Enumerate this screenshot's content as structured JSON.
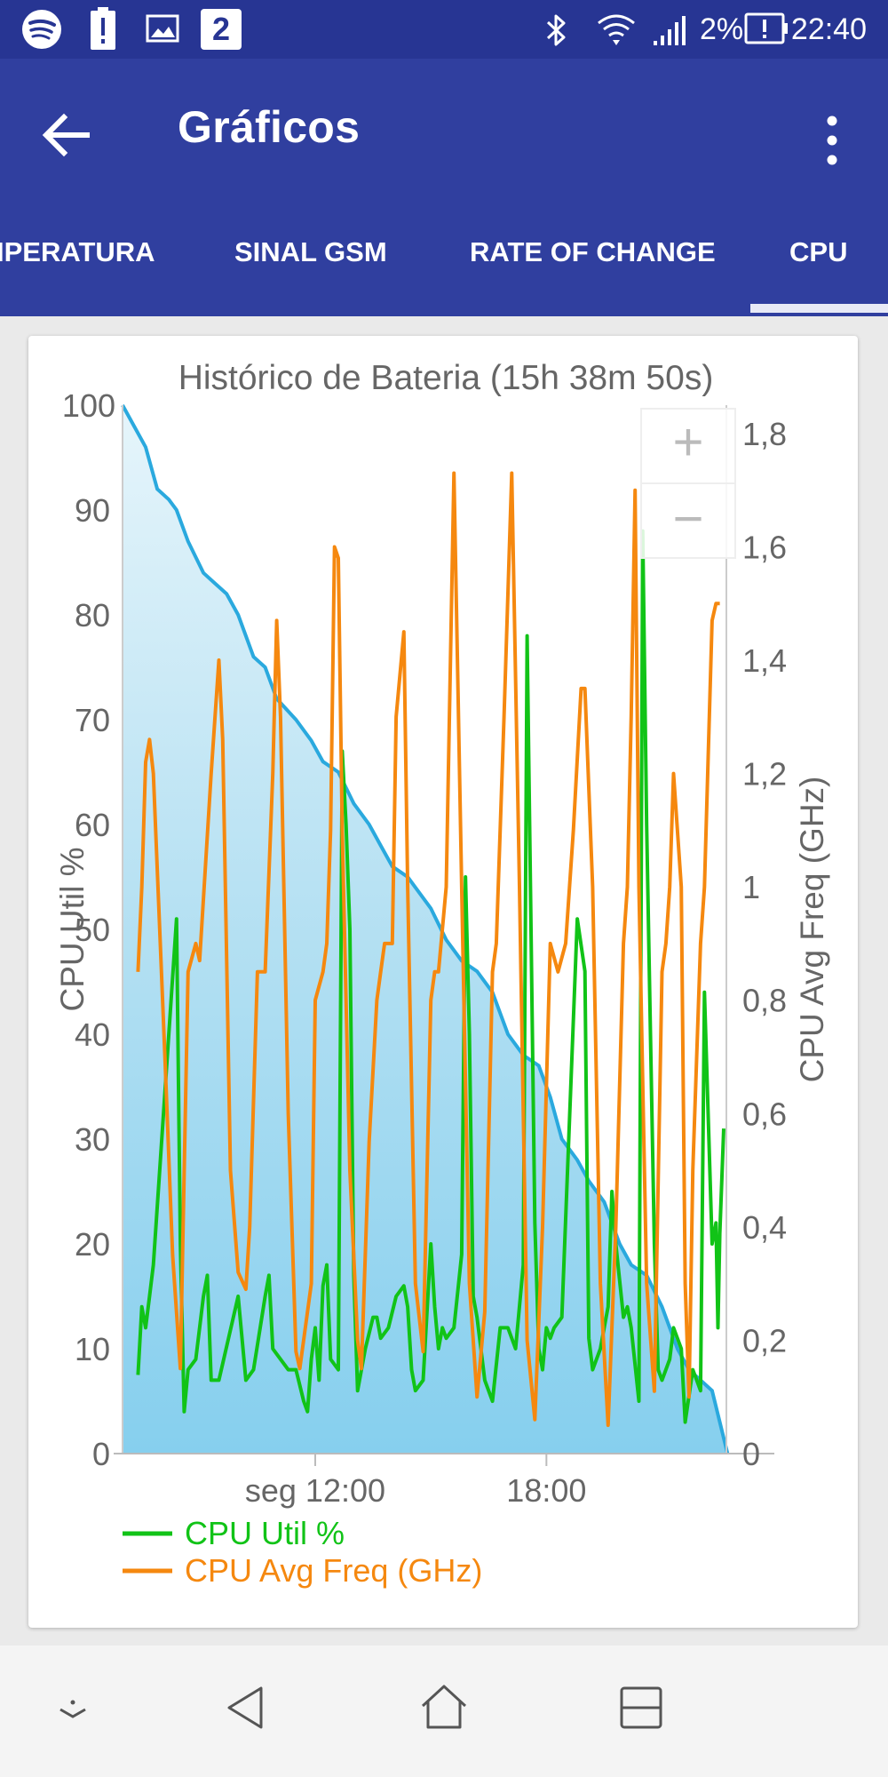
{
  "status_bar": {
    "time": "22:40",
    "battery_pct": "2%",
    "notification_badge": "2",
    "icons": [
      "spotify-icon",
      "battery-alert-icon",
      "image-icon",
      "badge-icon",
      "bluetooth-icon",
      "wifi-icon",
      "signal-icon",
      "battery-icon"
    ]
  },
  "app_bar": {
    "title": "Gráficos",
    "color": "#303f9f",
    "status_color": "#273593",
    "tabs": [
      {
        "label": "IPERATURA"
      },
      {
        "label": "SINAL GSM"
      },
      {
        "label": "RATE OF CHANGE"
      },
      {
        "label": "CPU",
        "selected": true
      }
    ]
  },
  "chart": {
    "zoom_in": "+",
    "zoom_out": "−"
  },
  "chart_data": {
    "type": "line",
    "title": "Histórico de Bateria (15h 38m 50s)",
    "ylabel_left": "CPU Util %",
    "ylabel_right": "CPU Avg Freq (GHz)",
    "left_ticks": [
      "0",
      "10",
      "20",
      "30",
      "40",
      "50",
      "60",
      "70",
      "80",
      "90",
      "100"
    ],
    "right_ticks": [
      "0",
      "0,2",
      "0,4",
      "0,6",
      "0,8",
      "1",
      "1,2",
      "1,4",
      "1,6",
      "1,8"
    ],
    "x_ticks": [
      "seg 12:00",
      "18:00"
    ],
    "ylim_left": [
      0,
      100
    ],
    "ylim_right": [
      0,
      1.85
    ],
    "x_range_hours": [
      7.0,
      22.67
    ],
    "x_tick_hours": [
      12,
      18
    ],
    "colors": {
      "battery": "#2aa9de",
      "cpu_util": "#11c317",
      "cpu_freq": "#f5880f"
    },
    "legend": {
      "position": "bottom-left",
      "entries": [
        "CPU Util %",
        "CPU Avg Freq (GHz)"
      ]
    },
    "series": [
      {
        "name": "CPU Util %",
        "axis": "left",
        "points": [
          [
            7.4,
            7.5
          ],
          [
            7.5,
            14
          ],
          [
            7.6,
            12
          ],
          [
            7.7,
            15
          ],
          [
            7.8,
            18
          ],
          [
            8.4,
            51
          ],
          [
            8.5,
            20
          ],
          [
            8.6,
            4
          ],
          [
            8.7,
            8
          ],
          [
            8.9,
            9
          ],
          [
            9.1,
            15
          ],
          [
            9.2,
            17
          ],
          [
            9.3,
            7
          ],
          [
            9.5,
            7
          ],
          [
            10.0,
            15
          ],
          [
            10.2,
            7
          ],
          [
            10.4,
            8
          ],
          [
            10.7,
            15
          ],
          [
            10.8,
            17
          ],
          [
            10.9,
            10
          ],
          [
            11.3,
            8
          ],
          [
            11.5,
            8
          ],
          [
            11.7,
            5
          ],
          [
            11.8,
            4
          ],
          [
            11.9,
            9
          ],
          [
            12.0,
            12
          ],
          [
            12.1,
            7
          ],
          [
            12.2,
            16
          ],
          [
            12.3,
            18
          ],
          [
            12.4,
            9
          ],
          [
            12.6,
            8
          ],
          [
            12.7,
            67
          ],
          [
            12.8,
            60
          ],
          [
            12.9,
            50
          ],
          [
            13.0,
            17
          ],
          [
            13.1,
            6
          ],
          [
            13.3,
            10
          ],
          [
            13.5,
            13
          ],
          [
            13.6,
            13
          ],
          [
            13.7,
            11
          ],
          [
            13.9,
            12
          ],
          [
            14.1,
            15
          ],
          [
            14.3,
            16
          ],
          [
            14.4,
            14
          ],
          [
            14.5,
            8
          ],
          [
            14.6,
            6
          ],
          [
            14.8,
            7
          ],
          [
            15.0,
            20
          ],
          [
            15.1,
            14
          ],
          [
            15.2,
            10
          ],
          [
            15.3,
            12
          ],
          [
            15.4,
            11
          ],
          [
            15.6,
            12
          ],
          [
            15.8,
            19
          ],
          [
            15.9,
            55
          ],
          [
            16.0,
            40
          ],
          [
            16.1,
            15
          ],
          [
            16.2,
            13
          ],
          [
            16.4,
            7
          ],
          [
            16.6,
            5
          ],
          [
            16.8,
            12
          ],
          [
            17.0,
            12
          ],
          [
            17.2,
            10
          ],
          [
            17.4,
            18
          ],
          [
            17.5,
            78
          ],
          [
            17.6,
            50
          ],
          [
            17.7,
            22
          ],
          [
            17.8,
            10
          ],
          [
            17.9,
            8
          ],
          [
            18.0,
            12
          ],
          [
            18.1,
            11
          ],
          [
            18.2,
            12
          ],
          [
            18.4,
            13
          ],
          [
            18.8,
            51
          ],
          [
            19.0,
            46
          ],
          [
            19.1,
            11
          ],
          [
            19.2,
            8
          ],
          [
            19.4,
            10
          ],
          [
            19.5,
            12
          ],
          [
            19.6,
            14
          ],
          [
            19.7,
            25
          ],
          [
            19.8,
            20
          ],
          [
            20.0,
            13
          ],
          [
            20.1,
            14
          ],
          [
            20.2,
            12
          ],
          [
            20.4,
            5
          ],
          [
            20.5,
            88
          ],
          [
            20.6,
            60
          ],
          [
            20.7,
            40
          ],
          [
            20.8,
            20
          ],
          [
            20.9,
            8
          ],
          [
            21.0,
            7
          ],
          [
            21.2,
            9
          ],
          [
            21.3,
            12
          ],
          [
            21.5,
            10
          ],
          [
            21.6,
            3
          ],
          [
            21.8,
            8
          ],
          [
            21.9,
            7
          ],
          [
            22.0,
            6
          ],
          [
            22.1,
            44
          ],
          [
            22.2,
            32
          ],
          [
            22.3,
            20
          ],
          [
            22.4,
            22
          ],
          [
            22.45,
            12
          ],
          [
            22.5,
            21
          ],
          [
            22.6,
            31
          ]
        ]
      },
      {
        "name": "CPU Avg Freq (GHz)",
        "axis": "right",
        "points": [
          [
            7.4,
            0.85
          ],
          [
            7.5,
            1.0
          ],
          [
            7.6,
            1.22
          ],
          [
            7.7,
            1.26
          ],
          [
            7.8,
            1.2
          ],
          [
            8.1,
            0.7
          ],
          [
            8.3,
            0.35
          ],
          [
            8.5,
            0.15
          ],
          [
            8.7,
            0.85
          ],
          [
            8.9,
            0.9
          ],
          [
            9.0,
            0.87
          ],
          [
            9.3,
            1.2
          ],
          [
            9.5,
            1.4
          ],
          [
            9.6,
            1.26
          ],
          [
            9.8,
            0.5
          ],
          [
            10.0,
            0.32
          ],
          [
            10.2,
            0.29
          ],
          [
            10.3,
            0.4
          ],
          [
            10.5,
            0.85
          ],
          [
            10.7,
            0.85
          ],
          [
            10.9,
            1.2
          ],
          [
            11.0,
            1.47
          ],
          [
            11.1,
            1.3
          ],
          [
            11.3,
            0.6
          ],
          [
            11.5,
            0.18
          ],
          [
            11.6,
            0.15
          ],
          [
            11.9,
            0.3
          ],
          [
            12.0,
            0.8
          ],
          [
            12.2,
            0.85
          ],
          [
            12.3,
            0.9
          ],
          [
            12.4,
            1.1
          ],
          [
            12.5,
            1.6
          ],
          [
            12.6,
            1.58
          ],
          [
            12.7,
            1.1
          ],
          [
            12.9,
            0.5
          ],
          [
            13.1,
            0.2
          ],
          [
            13.2,
            0.15
          ],
          [
            13.4,
            0.55
          ],
          [
            13.6,
            0.8
          ],
          [
            13.7,
            0.85
          ],
          [
            13.8,
            0.9
          ],
          [
            14.0,
            0.9
          ],
          [
            14.1,
            1.3
          ],
          [
            14.3,
            1.45
          ],
          [
            14.4,
            1.0
          ],
          [
            14.6,
            0.3
          ],
          [
            14.8,
            0.18
          ],
          [
            15.0,
            0.8
          ],
          [
            15.1,
            0.85
          ],
          [
            15.2,
            0.85
          ],
          [
            15.4,
            1.0
          ],
          [
            15.6,
            1.73
          ],
          [
            15.8,
            1.0
          ],
          [
            16.0,
            0.3
          ],
          [
            16.2,
            0.1
          ],
          [
            16.4,
            0.25
          ],
          [
            16.6,
            0.85
          ],
          [
            16.7,
            0.9
          ],
          [
            16.9,
            1.3
          ],
          [
            17.1,
            1.73
          ],
          [
            17.3,
            1.0
          ],
          [
            17.5,
            0.2
          ],
          [
            17.7,
            0.06
          ],
          [
            17.9,
            0.4
          ],
          [
            18.1,
            0.9
          ],
          [
            18.3,
            0.85
          ],
          [
            18.5,
            0.9
          ],
          [
            18.7,
            1.1
          ],
          [
            18.9,
            1.35
          ],
          [
            19.0,
            1.35
          ],
          [
            19.2,
            1.0
          ],
          [
            19.4,
            0.3
          ],
          [
            19.6,
            0.05
          ],
          [
            19.8,
            0.4
          ],
          [
            20.0,
            0.9
          ],
          [
            20.1,
            1.0
          ],
          [
            20.2,
            1.3
          ],
          [
            20.3,
            1.7
          ],
          [
            20.4,
            1.0
          ],
          [
            20.6,
            0.3
          ],
          [
            20.8,
            0.11
          ],
          [
            21.0,
            0.85
          ],
          [
            21.1,
            0.9
          ],
          [
            21.2,
            1.0
          ],
          [
            21.3,
            1.2
          ],
          [
            21.5,
            1.0
          ],
          [
            21.6,
            0.3
          ],
          [
            21.7,
            0.1
          ],
          [
            21.8,
            0.5
          ],
          [
            22.0,
            0.9
          ],
          [
            22.1,
            1.0
          ],
          [
            22.3,
            1.47
          ],
          [
            22.4,
            1.5
          ],
          [
            22.5,
            1.5
          ]
        ]
      },
      {
        "name": "battery",
        "axis": "left",
        "points": [
          [
            7.0,
            100
          ],
          [
            7.3,
            98
          ],
          [
            7.6,
            96
          ],
          [
            7.9,
            92
          ],
          [
            8.2,
            91
          ],
          [
            8.4,
            90
          ],
          [
            8.7,
            87
          ],
          [
            9.1,
            84
          ],
          [
            9.4,
            83
          ],
          [
            9.7,
            82
          ],
          [
            10.0,
            80
          ],
          [
            10.4,
            76
          ],
          [
            10.7,
            75
          ],
          [
            11.0,
            72
          ],
          [
            11.5,
            70
          ],
          [
            11.9,
            68
          ],
          [
            12.2,
            66
          ],
          [
            12.6,
            65
          ],
          [
            13.0,
            62
          ],
          [
            13.4,
            60
          ],
          [
            13.7,
            58
          ],
          [
            14.0,
            56
          ],
          [
            14.4,
            55
          ],
          [
            14.6,
            54
          ],
          [
            15.0,
            52
          ],
          [
            15.4,
            49
          ],
          [
            15.8,
            47
          ],
          [
            16.2,
            46
          ],
          [
            16.6,
            44
          ],
          [
            17.0,
            40
          ],
          [
            17.4,
            38
          ],
          [
            17.8,
            37
          ],
          [
            18.1,
            34
          ],
          [
            18.4,
            30
          ],
          [
            18.8,
            28
          ],
          [
            19.1,
            26
          ],
          [
            19.5,
            24
          ],
          [
            19.9,
            20
          ],
          [
            20.2,
            18
          ],
          [
            20.6,
            17
          ],
          [
            21.0,
            14
          ],
          [
            21.4,
            10
          ],
          [
            21.7,
            8
          ],
          [
            22.0,
            7
          ],
          [
            22.3,
            6
          ],
          [
            22.5,
            3
          ],
          [
            22.7,
            0
          ]
        ]
      }
    ]
  }
}
